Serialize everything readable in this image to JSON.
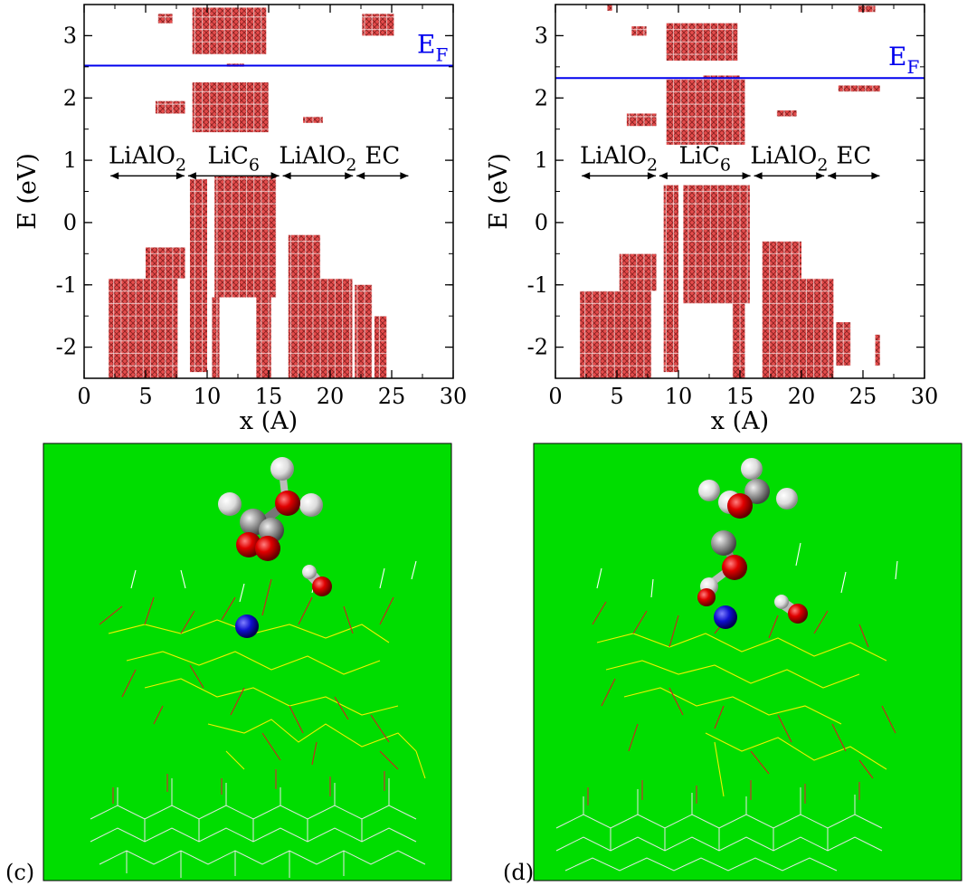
{
  "chart_data": [
    {
      "type": "heatmap",
      "title": "",
      "xlabel": "x (A)",
      "ylabel": "E (eV)",
      "xlim": [
        0,
        30
      ],
      "ylim": [
        -2.5,
        3.5
      ],
      "xticks": [
        "0",
        "5",
        "10",
        "15",
        "20",
        "25",
        "30"
      ],
      "yticks": [
        "-2",
        "-1",
        "0",
        "1",
        "2",
        "3"
      ],
      "fermi_level": {
        "label": "E",
        "subscript": "F",
        "value": 2.52,
        "color": "#0000ee"
      },
      "regions": [
        {
          "name": "LiAlO",
          "sub": "2",
          "from": 2.0,
          "to": 8.3
        },
        {
          "name": "LiC",
          "sub": "6",
          "from": 8.3,
          "to": 16.0
        },
        {
          "name": "LiAlO",
          "sub": "2",
          "from": 16.0,
          "to": 22.0
        },
        {
          "name": "EC",
          "sub": "",
          "from": 22.0,
          "to": 26.5
        }
      ],
      "region_arrow_y": 0.75,
      "state_color": "#cc2222",
      "states": [
        {
          "x0": 2.0,
          "x1": 7.6,
          "e0": -2.5,
          "e1": -0.9
        },
        {
          "x0": 5.0,
          "x1": 8.2,
          "e0": -0.9,
          "e1": -0.4
        },
        {
          "x0": 8.6,
          "x1": 10.0,
          "e0": -2.4,
          "e1": 0.7
        },
        {
          "x0": 10.4,
          "x1": 11.0,
          "e0": -2.5,
          "e1": -1.2
        },
        {
          "x0": 10.6,
          "x1": 15.6,
          "e0": -1.2,
          "e1": 0.75
        },
        {
          "x0": 14.0,
          "x1": 15.2,
          "e0": -2.5,
          "e1": -1.2
        },
        {
          "x0": 16.6,
          "x1": 21.8,
          "e0": -2.5,
          "e1": -0.9
        },
        {
          "x0": 16.6,
          "x1": 19.2,
          "e0": -0.9,
          "e1": -0.2
        },
        {
          "x0": 22.0,
          "x1": 23.4,
          "e0": -2.5,
          "e1": -1.0
        },
        {
          "x0": 23.6,
          "x1": 24.6,
          "e0": -2.5,
          "e1": -1.5
        },
        {
          "x0": 8.8,
          "x1": 15.0,
          "e0": 1.45,
          "e1": 2.25
        },
        {
          "x0": 5.8,
          "x1": 8.2,
          "e0": 1.75,
          "e1": 1.95
        },
        {
          "x0": 17.8,
          "x1": 19.4,
          "e0": 1.6,
          "e1": 1.7
        },
        {
          "x0": 8.8,
          "x1": 14.8,
          "e0": 2.7,
          "e1": 3.45
        },
        {
          "x0": 6.0,
          "x1": 7.2,
          "e0": 3.2,
          "e1": 3.35
        },
        {
          "x0": 22.6,
          "x1": 25.2,
          "e0": 3.0,
          "e1": 3.35
        },
        {
          "x0": 11.6,
          "x1": 13.0,
          "e0": 2.5,
          "e1": 2.55
        }
      ]
    },
    {
      "type": "heatmap",
      "title": "",
      "xlabel": "x (A)",
      "ylabel": "E (eV)",
      "xlim": [
        0,
        30
      ],
      "ylim": [
        -2.5,
        3.5
      ],
      "xticks": [
        "0",
        "5",
        "10",
        "15",
        "20",
        "25",
        "30"
      ],
      "yticks": [
        "-2",
        "-1",
        "0",
        "1",
        "2",
        "3"
      ],
      "fermi_level": {
        "label": "E",
        "subscript": "F",
        "value": 2.32,
        "color": "#0000ee"
      },
      "regions": [
        {
          "name": "LiAlO",
          "sub": "2",
          "from": 2.0,
          "to": 8.3
        },
        {
          "name": "LiC",
          "sub": "6",
          "from": 8.3,
          "to": 16.0
        },
        {
          "name": "LiAlO",
          "sub": "2",
          "from": 16.0,
          "to": 22.0
        },
        {
          "name": "EC",
          "sub": "",
          "from": 22.0,
          "to": 26.5
        }
      ],
      "region_arrow_y": 0.75,
      "state_color": "#cc2222",
      "states": [
        {
          "x0": 2.0,
          "x1": 7.8,
          "e0": -2.5,
          "e1": -1.1
        },
        {
          "x0": 5.2,
          "x1": 8.2,
          "e0": -1.1,
          "e1": -0.5
        },
        {
          "x0": 8.8,
          "x1": 10.0,
          "e0": -2.4,
          "e1": 0.6
        },
        {
          "x0": 10.4,
          "x1": 15.8,
          "e0": -1.3,
          "e1": 0.6
        },
        {
          "x0": 14.4,
          "x1": 15.4,
          "e0": -2.5,
          "e1": -1.3
        },
        {
          "x0": 16.8,
          "x1": 22.6,
          "e0": -2.5,
          "e1": -0.9
        },
        {
          "x0": 16.8,
          "x1": 20.0,
          "e0": -0.9,
          "e1": -0.3
        },
        {
          "x0": 22.8,
          "x1": 24.0,
          "e0": -2.3,
          "e1": -1.6
        },
        {
          "x0": 26.0,
          "x1": 26.4,
          "e0": -2.3,
          "e1": -1.8
        },
        {
          "x0": 9.0,
          "x1": 15.4,
          "e0": 1.25,
          "e1": 2.3
        },
        {
          "x0": 5.8,
          "x1": 8.2,
          "e0": 1.55,
          "e1": 1.75
        },
        {
          "x0": 18.0,
          "x1": 19.6,
          "e0": 1.7,
          "e1": 1.8
        },
        {
          "x0": 9.0,
          "x1": 14.8,
          "e0": 2.6,
          "e1": 3.2
        },
        {
          "x0": 6.2,
          "x1": 7.4,
          "e0": 3.0,
          "e1": 3.15
        },
        {
          "x0": 23.0,
          "x1": 26.4,
          "e0": 2.1,
          "e1": 2.2
        },
        {
          "x0": 24.6,
          "x1": 26.0,
          "e0": 3.38,
          "e1": 3.48
        },
        {
          "x0": 4.2,
          "x1": 4.6,
          "e0": 3.4,
          "e1": 3.5
        },
        {
          "x0": 12.0,
          "x1": 15.0,
          "e0": 2.3,
          "e1": 2.36
        }
      ]
    }
  ],
  "structures": [
    {
      "panel_label": "(c)",
      "background": "#00dd00"
    },
    {
      "panel_label": "(d)",
      "background": "#00dd00"
    }
  ]
}
